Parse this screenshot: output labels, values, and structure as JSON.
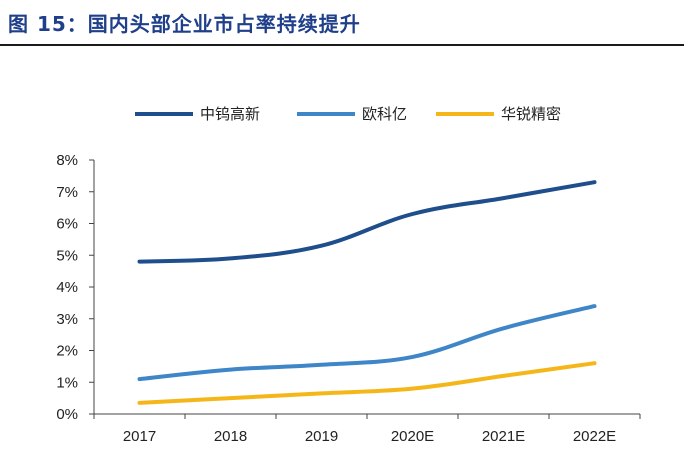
{
  "figure": {
    "title": "图 15：国内头部企业市占率持续提升"
  },
  "chart_data": {
    "type": "line",
    "categories": [
      "2017",
      "2018",
      "2019",
      "2020E",
      "2021E",
      "2022E"
    ],
    "series": [
      {
        "name": "中钨高新",
        "color": "#1f4e8c",
        "values": [
          4.8,
          4.9,
          5.3,
          6.3,
          6.8,
          7.3
        ]
      },
      {
        "name": "欧科亿",
        "color": "#3f86c8",
        "values": [
          1.1,
          1.4,
          1.55,
          1.8,
          2.7,
          3.4
        ]
      },
      {
        "name": "华锐精密",
        "color": "#f5b61a",
        "values": [
          0.35,
          0.5,
          0.65,
          0.8,
          1.2,
          1.6
        ]
      }
    ],
    "yticks": [
      "0%",
      "1%",
      "2%",
      "3%",
      "4%",
      "5%",
      "6%",
      "7%",
      "8%"
    ],
    "ylim": [
      0,
      8
    ],
    "yunit": "%",
    "legend_position": "top",
    "grid": false
  }
}
